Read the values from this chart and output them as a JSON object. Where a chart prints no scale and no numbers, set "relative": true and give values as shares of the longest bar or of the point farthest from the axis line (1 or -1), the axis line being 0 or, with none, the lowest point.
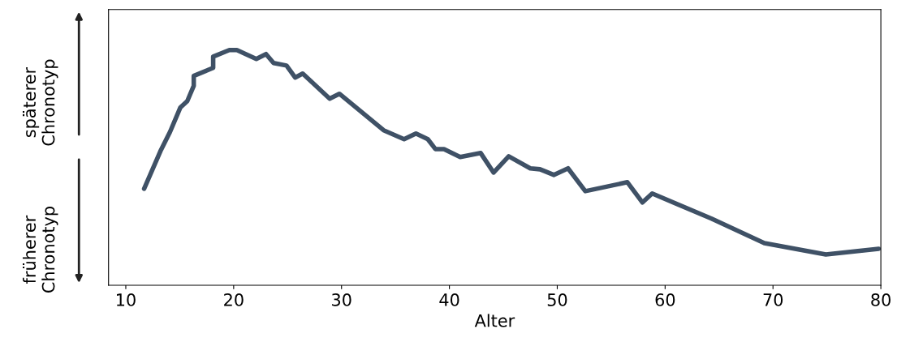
{
  "chart_data": {
    "type": "line",
    "relative": true,
    "xlabel": "Alter",
    "xlim": [
      8.4,
      80
    ],
    "xticks": [
      10,
      20,
      30,
      40,
      50,
      60,
      70,
      80
    ],
    "annotations": [
      "späterer\nChronotyp",
      "früherer\nChronotyp"
    ],
    "series": [
      {
        "color": "#3f5166",
        "x": [
          11.7,
          13.2,
          14.1,
          15.05,
          15.7,
          16.3,
          16.3,
          18.1,
          18.1,
          19.6,
          20.3,
          22.1,
          23.0,
          23.7,
          24.9,
          25.7,
          26.4,
          28.9,
          29.8,
          33.9,
          35.8,
          36.9,
          38.0,
          38.7,
          39.5,
          41.0,
          42.9,
          44.1,
          45.5,
          47.5,
          48.4,
          49.7,
          51.0,
          52.6,
          56.5,
          57.9,
          58.8,
          64.3,
          69.2,
          74.9,
          79.8
        ],
        "values": [
          0.41,
          0.569,
          0.652,
          0.755,
          0.783,
          0.848,
          0.89,
          0.924,
          0.972,
          1,
          1,
          0.962,
          0.983,
          0.945,
          0.934,
          0.883,
          0.9,
          0.793,
          0.814,
          0.659,
          0.621,
          0.645,
          0.621,
          0.579,
          0.579,
          0.545,
          0.562,
          0.479,
          0.548,
          0.497,
          0.493,
          0.469,
          0.497,
          0.4,
          0.438,
          0.352,
          0.39,
          0.283,
          0.179,
          0.131,
          0.155
        ]
      }
    ]
  }
}
